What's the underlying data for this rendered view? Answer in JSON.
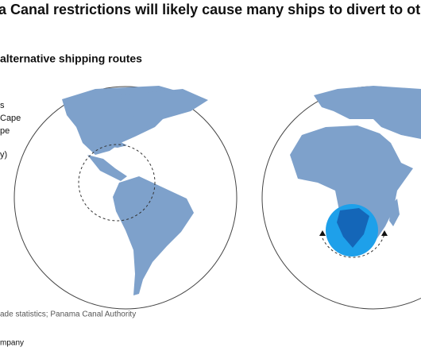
{
  "header": {
    "title": "a Canal restrictions will likely cause many ships to divert to oth",
    "subtitle": "alternative shipping routes"
  },
  "legend": {
    "lines": [
      "s",
      "Cape",
      "pe",
      "y)"
    ]
  },
  "source": "ade statistics; Panama Canal Authority",
  "footer": "mpany"
}
